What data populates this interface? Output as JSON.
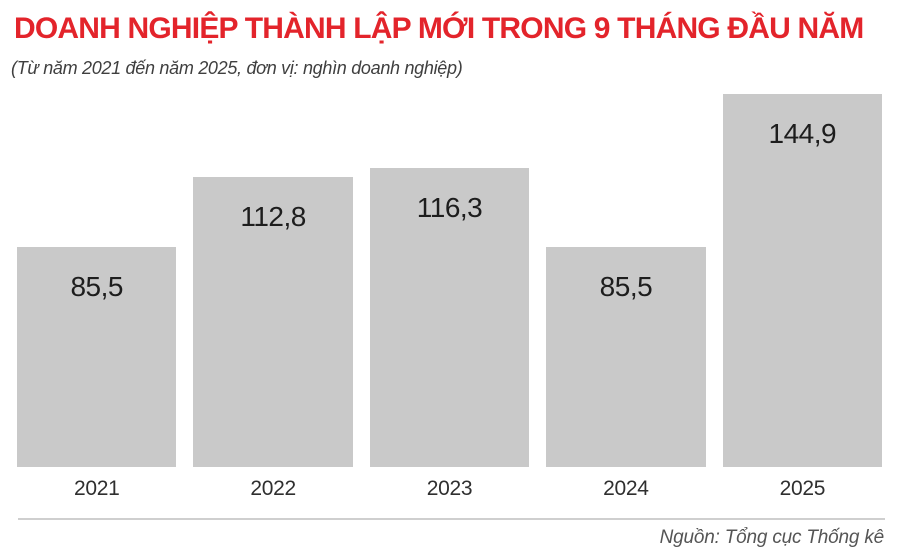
{
  "header": {
    "title": "DOANH NGHIỆP THÀNH LẬP MỚI TRONG 9 THÁNG ĐẦU NĂM",
    "subtitle": "(Từ năm 2021 đến năm 2025, đơn vị: nghìn doanh nghiệp)"
  },
  "chart_data": {
    "type": "bar",
    "title": "DOANH NGHIỆP THÀNH LẬP MỚI TRONG 9 THÁNG ĐẦU NĂM",
    "subtitle": "(Từ năm 2021 đến năm 2025, đơn vị: nghìn doanh nghiệp)",
    "unit": "nghìn doanh nghiệp",
    "categories": [
      "2021",
      "2022",
      "2023",
      "2024",
      "2025"
    ],
    "values": [
      85.5,
      112.8,
      116.3,
      85.5,
      144.9
    ],
    "value_labels": [
      "85,5",
      "112,8",
      "116,3",
      "85,5",
      "144,9"
    ],
    "ylim": [
      0,
      146.5
    ],
    "grid": false,
    "legend": false,
    "bar_color": "#c9c9c9",
    "value_label_position": "inside-top"
  },
  "footer": {
    "source": "Nguồn: Tổng cục Thống kê"
  },
  "colors": {
    "title_red": "#e3242b",
    "bar_gray": "#c9c9c9",
    "value_text": "#1d1d1d",
    "divider": "#cfcfcf",
    "source_text": "#555555"
  }
}
